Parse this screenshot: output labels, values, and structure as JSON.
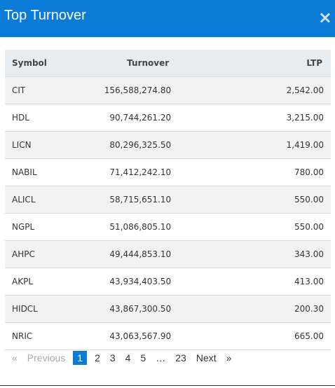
{
  "header": {
    "title": "Top Turnover",
    "close": "×"
  },
  "table": {
    "columns": [
      "Symbol",
      "Turnover",
      "LTP"
    ],
    "rows": [
      [
        "CIT",
        "156,588,274.80",
        "2,542.00"
      ],
      [
        "HDL",
        "90,744,261.20",
        "3,215.00"
      ],
      [
        "LICN",
        "80,296,325.50",
        "1,419.00"
      ],
      [
        "NABIL",
        "71,412,242.10",
        "780.00"
      ],
      [
        "ALICL",
        "58,715,651.10",
        "550.00"
      ],
      [
        "NGPL",
        "51,086,805.10",
        "550.00"
      ],
      [
        "AHPC",
        "49,444,853.10",
        "343.00"
      ],
      [
        "AKPL",
        "43,934,403.50",
        "413.00"
      ],
      [
        "HIDCL",
        "43,867,300.50",
        "200.30"
      ],
      [
        "NRIC",
        "43,063,567.90",
        "665.00"
      ]
    ]
  },
  "pagination": {
    "first": "«",
    "previous": "Previous",
    "pages": [
      "1",
      "2",
      "3",
      "4",
      "5",
      "…",
      "23"
    ],
    "next": "Next",
    "last": "»"
  }
}
